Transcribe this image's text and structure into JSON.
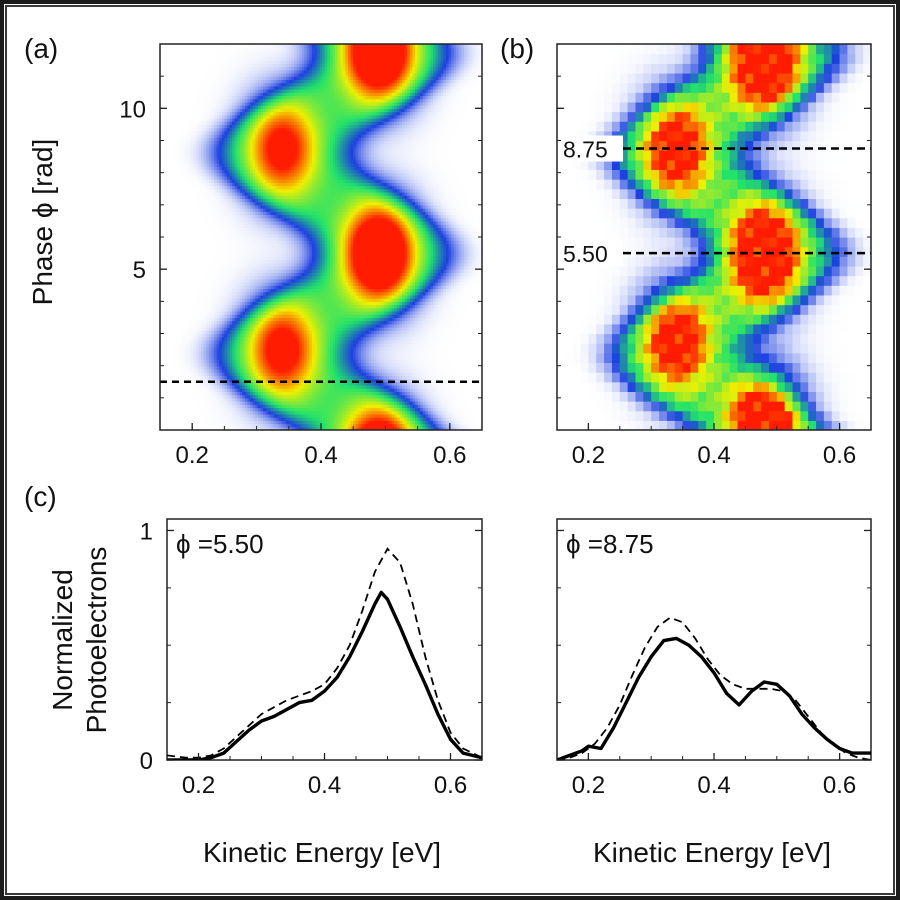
{
  "figure": {
    "panel_labels": [
      "(a)",
      "(b)",
      "(c)"
    ],
    "frame_colors": [
      "#1c1c1c",
      "#ffffff",
      "#3a3a3a"
    ]
  },
  "chart_data": [
    {
      "panel": "(a)",
      "type": "heatmap",
      "description_source": "simulation",
      "xlim": [
        0.15,
        0.65
      ],
      "ylim": [
        0,
        12
      ],
      "xticks": [
        0.2,
        0.4,
        0.6
      ],
      "xtick_labels": [
        "0.2",
        "0.4",
        "0.6"
      ],
      "yticks": [
        5,
        10
      ],
      "ytick_labels": [
        "5",
        "10"
      ],
      "ylabel": "Phase ϕ [rad]",
      "xlabel": "",
      "dashed_lines_phi": [
        1.5
      ],
      "colormap": [
        "#ffffff",
        "#1d3fe0",
        "#22e36a",
        "#f0f000",
        "#ff1c00"
      ],
      "peaks": [
        {
          "energy": 0.34,
          "phase": 8.75,
          "intensity": 0.68
        },
        {
          "energy": 0.34,
          "phase": 2.5,
          "intensity": 0.7
        },
        {
          "energy": 0.49,
          "phase": 5.5,
          "intensity": 1.0
        },
        {
          "energy": 0.49,
          "phase": 11.8,
          "intensity": 1.0
        },
        {
          "energy": 0.49,
          "phase": -0.8,
          "intensity": 1.0
        }
      ]
    },
    {
      "panel": "(b)",
      "type": "heatmap",
      "description_source": "experiment",
      "xlim": [
        0.15,
        0.65
      ],
      "ylim": [
        0,
        12
      ],
      "xticks": [
        0.2,
        0.4,
        0.6
      ],
      "xtick_labels": [
        "0.2",
        "0.4",
        "0.6"
      ],
      "yticks": [
        5,
        10
      ],
      "ytick_labels": [],
      "dashed_lines_phi": [
        5.5,
        8.75
      ],
      "dashed_line_labels": [
        "5.50",
        "8.75"
      ],
      "pixel_bins": {
        "energy_step": 0.0125,
        "phase_step": 0.3
      },
      "peaks": [
        {
          "energy": 0.34,
          "phase": 8.75,
          "intensity": 0.75
        },
        {
          "energy": 0.34,
          "phase": 2.8,
          "intensity": 0.75
        },
        {
          "energy": 0.48,
          "phase": 5.5,
          "intensity": 1.0
        },
        {
          "energy": 0.48,
          "phase": 11.5,
          "intensity": 1.0
        },
        {
          "energy": 0.48,
          "phase": 0.2,
          "intensity": 0.95
        }
      ]
    },
    {
      "panel": "(c) left",
      "type": "line",
      "annotation": "ϕ =5.50",
      "xlim": [
        0.15,
        0.65
      ],
      "ylim": [
        0,
        1.05
      ],
      "xticks": [
        0.2,
        0.4,
        0.6
      ],
      "xtick_labels": [
        "0.2",
        "0.4",
        "0.6"
      ],
      "yticks": [
        0,
        1
      ],
      "ytick_labels": [
        "0",
        "1"
      ],
      "xlabel": "Kinetic Energy [eV]",
      "ylabel_lines": [
        "Normalized",
        "Photoelectrons"
      ],
      "series": [
        {
          "style": "solid",
          "x": [
            0.15,
            0.18,
            0.2,
            0.22,
            0.24,
            0.26,
            0.28,
            0.3,
            0.32,
            0.34,
            0.36,
            0.38,
            0.4,
            0.42,
            0.44,
            0.46,
            0.48,
            0.49,
            0.5,
            0.52,
            0.54,
            0.56,
            0.58,
            0.6,
            0.62,
            0.65
          ],
          "y": [
            0.0,
            0.0,
            0.0,
            0.01,
            0.03,
            0.08,
            0.13,
            0.17,
            0.19,
            0.22,
            0.25,
            0.26,
            0.3,
            0.36,
            0.45,
            0.56,
            0.68,
            0.73,
            0.7,
            0.58,
            0.45,
            0.33,
            0.2,
            0.09,
            0.03,
            0.01
          ]
        },
        {
          "style": "dashed",
          "x": [
            0.15,
            0.18,
            0.2,
            0.22,
            0.24,
            0.26,
            0.28,
            0.3,
            0.32,
            0.34,
            0.36,
            0.38,
            0.4,
            0.42,
            0.44,
            0.46,
            0.48,
            0.5,
            0.52,
            0.54,
            0.56,
            0.58,
            0.6,
            0.62,
            0.65
          ],
          "y": [
            0.02,
            0.01,
            0.01,
            0.02,
            0.05,
            0.1,
            0.15,
            0.2,
            0.23,
            0.26,
            0.28,
            0.3,
            0.33,
            0.4,
            0.5,
            0.65,
            0.82,
            0.92,
            0.86,
            0.68,
            0.45,
            0.26,
            0.12,
            0.05,
            0.01
          ]
        }
      ]
    },
    {
      "panel": "(c) right",
      "type": "line",
      "annotation": "ϕ =8.75",
      "xlim": [
        0.15,
        0.65
      ],
      "ylim": [
        0,
        1.05
      ],
      "xticks": [
        0.2,
        0.4,
        0.6
      ],
      "xtick_labels": [
        "0.2",
        "0.4",
        "0.6"
      ],
      "yticks": [
        0,
        1
      ],
      "ytick_labels": [],
      "xlabel": "Kinetic Energy [eV]",
      "series": [
        {
          "style": "solid",
          "x": [
            0.15,
            0.17,
            0.19,
            0.2,
            0.22,
            0.24,
            0.26,
            0.28,
            0.3,
            0.32,
            0.34,
            0.36,
            0.38,
            0.4,
            0.42,
            0.44,
            0.46,
            0.48,
            0.5,
            0.52,
            0.54,
            0.56,
            0.58,
            0.6,
            0.62,
            0.65
          ],
          "y": [
            0.0,
            0.02,
            0.04,
            0.06,
            0.05,
            0.14,
            0.25,
            0.36,
            0.45,
            0.52,
            0.53,
            0.5,
            0.45,
            0.38,
            0.29,
            0.24,
            0.3,
            0.34,
            0.33,
            0.28,
            0.2,
            0.14,
            0.09,
            0.05,
            0.03,
            0.03
          ]
        },
        {
          "style": "dashed",
          "x": [
            0.15,
            0.17,
            0.19,
            0.21,
            0.23,
            0.25,
            0.27,
            0.29,
            0.31,
            0.33,
            0.35,
            0.37,
            0.39,
            0.41,
            0.43,
            0.45,
            0.47,
            0.49,
            0.51,
            0.53,
            0.55,
            0.57,
            0.59,
            0.61,
            0.63,
            0.65
          ],
          "y": [
            0.0,
            0.01,
            0.03,
            0.07,
            0.14,
            0.24,
            0.37,
            0.49,
            0.58,
            0.62,
            0.6,
            0.53,
            0.44,
            0.37,
            0.33,
            0.31,
            0.31,
            0.31,
            0.3,
            0.26,
            0.19,
            0.12,
            0.07,
            0.03,
            0.01,
            0.0
          ]
        }
      ]
    }
  ]
}
